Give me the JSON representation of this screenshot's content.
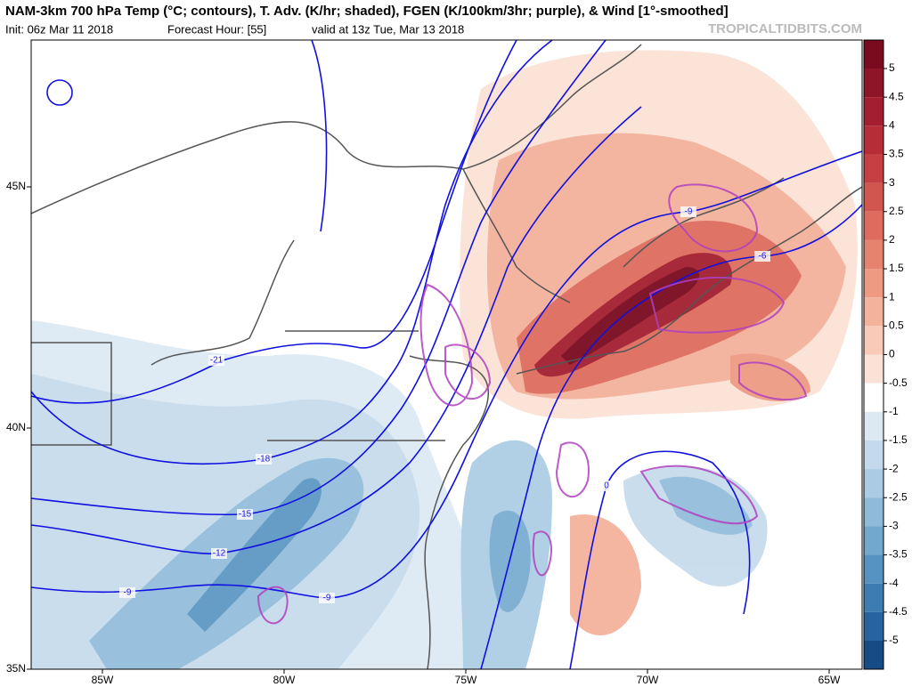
{
  "header": {
    "title": "NAM-3km 700 hPa Temp (°C; contours), T. Adv. (K/hr; shaded), FGEN (K/100km/3hr; purple), & Wind [1°-smoothed]",
    "init": "Init: 06z Mar 11 2018",
    "forecast_hour": "Forecast Hour: [55]",
    "valid": "valid at 13z Tue, Mar 13 2018",
    "credit": "TROPICALTIDBITS.COM"
  },
  "axes": {
    "x_labels": [
      "85W",
      "80W",
      "75W",
      "70W",
      "65W"
    ],
    "y_labels": [
      "45N",
      "40N",
      "35N"
    ]
  },
  "colorbar": {
    "ticks": [
      5,
      4.5,
      4,
      3.5,
      3,
      2.5,
      2,
      1.5,
      1,
      0.5,
      0,
      -0.5,
      -1,
      -1.5,
      -2,
      -2.5,
      -3,
      -3.5,
      -4,
      -4.5,
      -5
    ],
    "colors": [
      "#7a0a1e",
      "#8e1427",
      "#a31f30",
      "#b62d38",
      "#c53f43",
      "#d25650",
      "#dd6c5e",
      "#e6836f",
      "#ee9a83",
      "#f3b29b",
      "#f8cab7",
      "#fbe2d6",
      "#ffffff",
      "#dce9f3",
      "#c4daec",
      "#aacbe3",
      "#8fbad9",
      "#73a8ce",
      "#5693c2",
      "#3c7cb3",
      "#27649f",
      "#164b86"
    ]
  },
  "contour_labels": [
    "-21",
    "-18",
    "-15",
    "-12",
    "-9",
    "-9",
    "-6",
    "-9",
    "0"
  ]
}
